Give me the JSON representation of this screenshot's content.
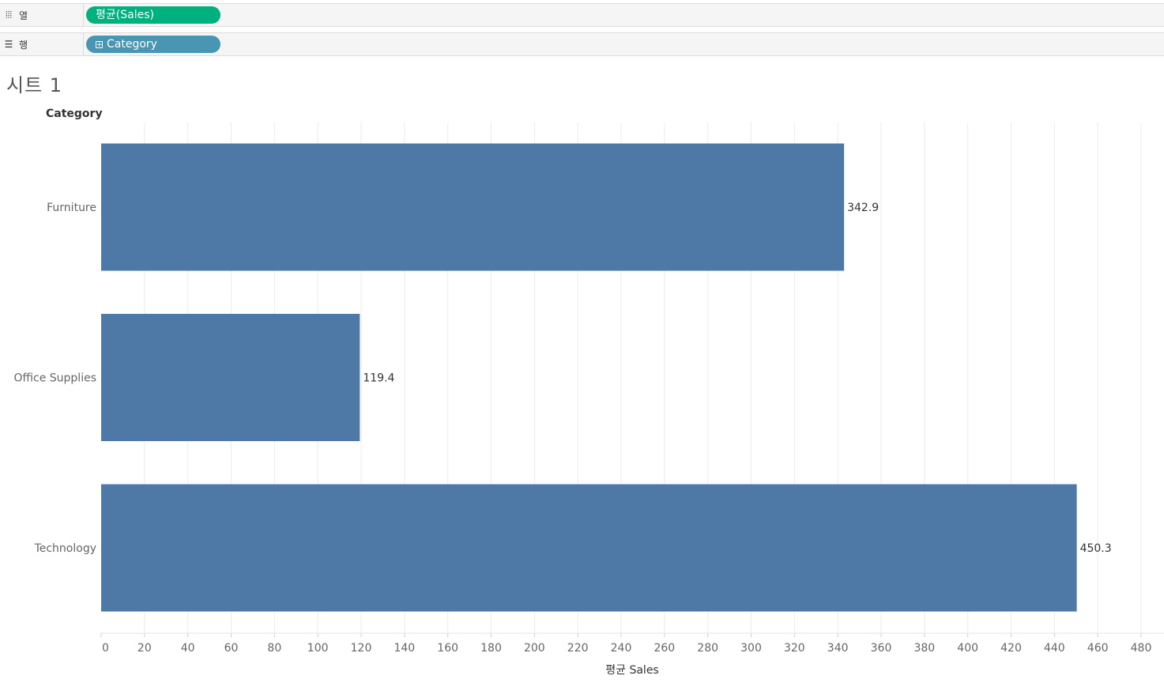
{
  "shelves": {
    "columns": {
      "label": "열",
      "icon": "columns-icon",
      "pill": "평균(Sales)",
      "pill_color": "#00b180"
    },
    "rows": {
      "label": "행",
      "icon": "rows-icon",
      "pill": "Category",
      "pill_color": "#4996b2"
    }
  },
  "sheet": {
    "title": "시트 1"
  },
  "chart_data": {
    "type": "bar",
    "orientation": "horizontal",
    "row_header": "Category",
    "categories": [
      "Furniture",
      "Office Supplies",
      "Technology"
    ],
    "values": [
      342.9,
      119.4,
      450.3
    ],
    "value_labels": [
      "342.9",
      "119.4",
      "450.3"
    ],
    "xlabel": "평균 Sales",
    "xlim": [
      0,
      480
    ],
    "xticks": [
      0,
      20,
      40,
      60,
      80,
      100,
      120,
      140,
      160,
      180,
      200,
      220,
      240,
      260,
      280,
      300,
      320,
      340,
      360,
      380,
      400,
      420,
      440,
      460,
      480
    ],
    "grid": true,
    "bar_color": "#4e79a7"
  }
}
